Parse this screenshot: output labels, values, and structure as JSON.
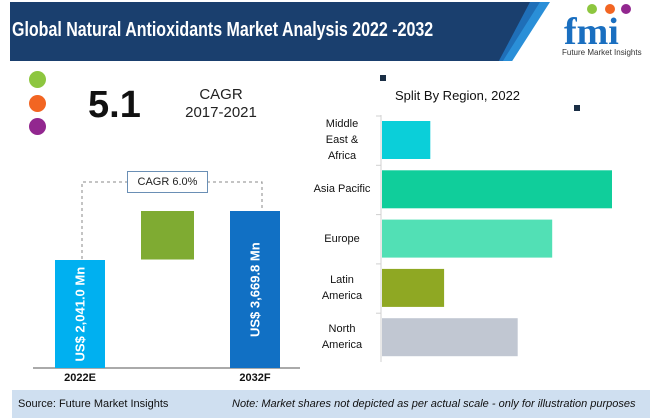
{
  "header": {
    "title": "Global Natural Antioxidants Market Analysis 2022 -2032",
    "logo_text": "Future Market Insights",
    "logo_letters": "fmi"
  },
  "cagr_summary": {
    "value": "5.1",
    "label": "CAGR",
    "period": "2017-2021",
    "dot_colors": [
      "#8dc63f",
      "#f26522",
      "#92278f"
    ]
  },
  "chart_data": [
    {
      "type": "bar",
      "orientation": "vertical",
      "categories": [
        "2022E",
        "2032F"
      ],
      "values": [
        2041.0,
        3669.8
      ],
      "value_labels": [
        "US$ 2,041.0 Mn",
        "US$ 3,669.8 Mn"
      ],
      "annotation": "CAGR 6.0%",
      "colors": [
        "#00b0f0",
        "#1170c4"
      ],
      "increment_color": "#7fab32"
    },
    {
      "type": "bar",
      "orientation": "horizontal",
      "title": "Split By Region, 2022",
      "categories": [
        "Middle East & Africa",
        "Asia Pacific",
        "Europe",
        "Latin America",
        "North America"
      ],
      "relative_values": [
        21,
        100,
        74,
        27,
        59
      ],
      "colors": [
        "#0bcfd9",
        "#10ce9b",
        "#52e0b5",
        "#8fa823",
        "#c1c7d2"
      ]
    }
  ],
  "footer": {
    "source": "Source: Future Market Insights",
    "note": "Note: Market shares not depicted as per actual scale - only for illustration purposes"
  }
}
